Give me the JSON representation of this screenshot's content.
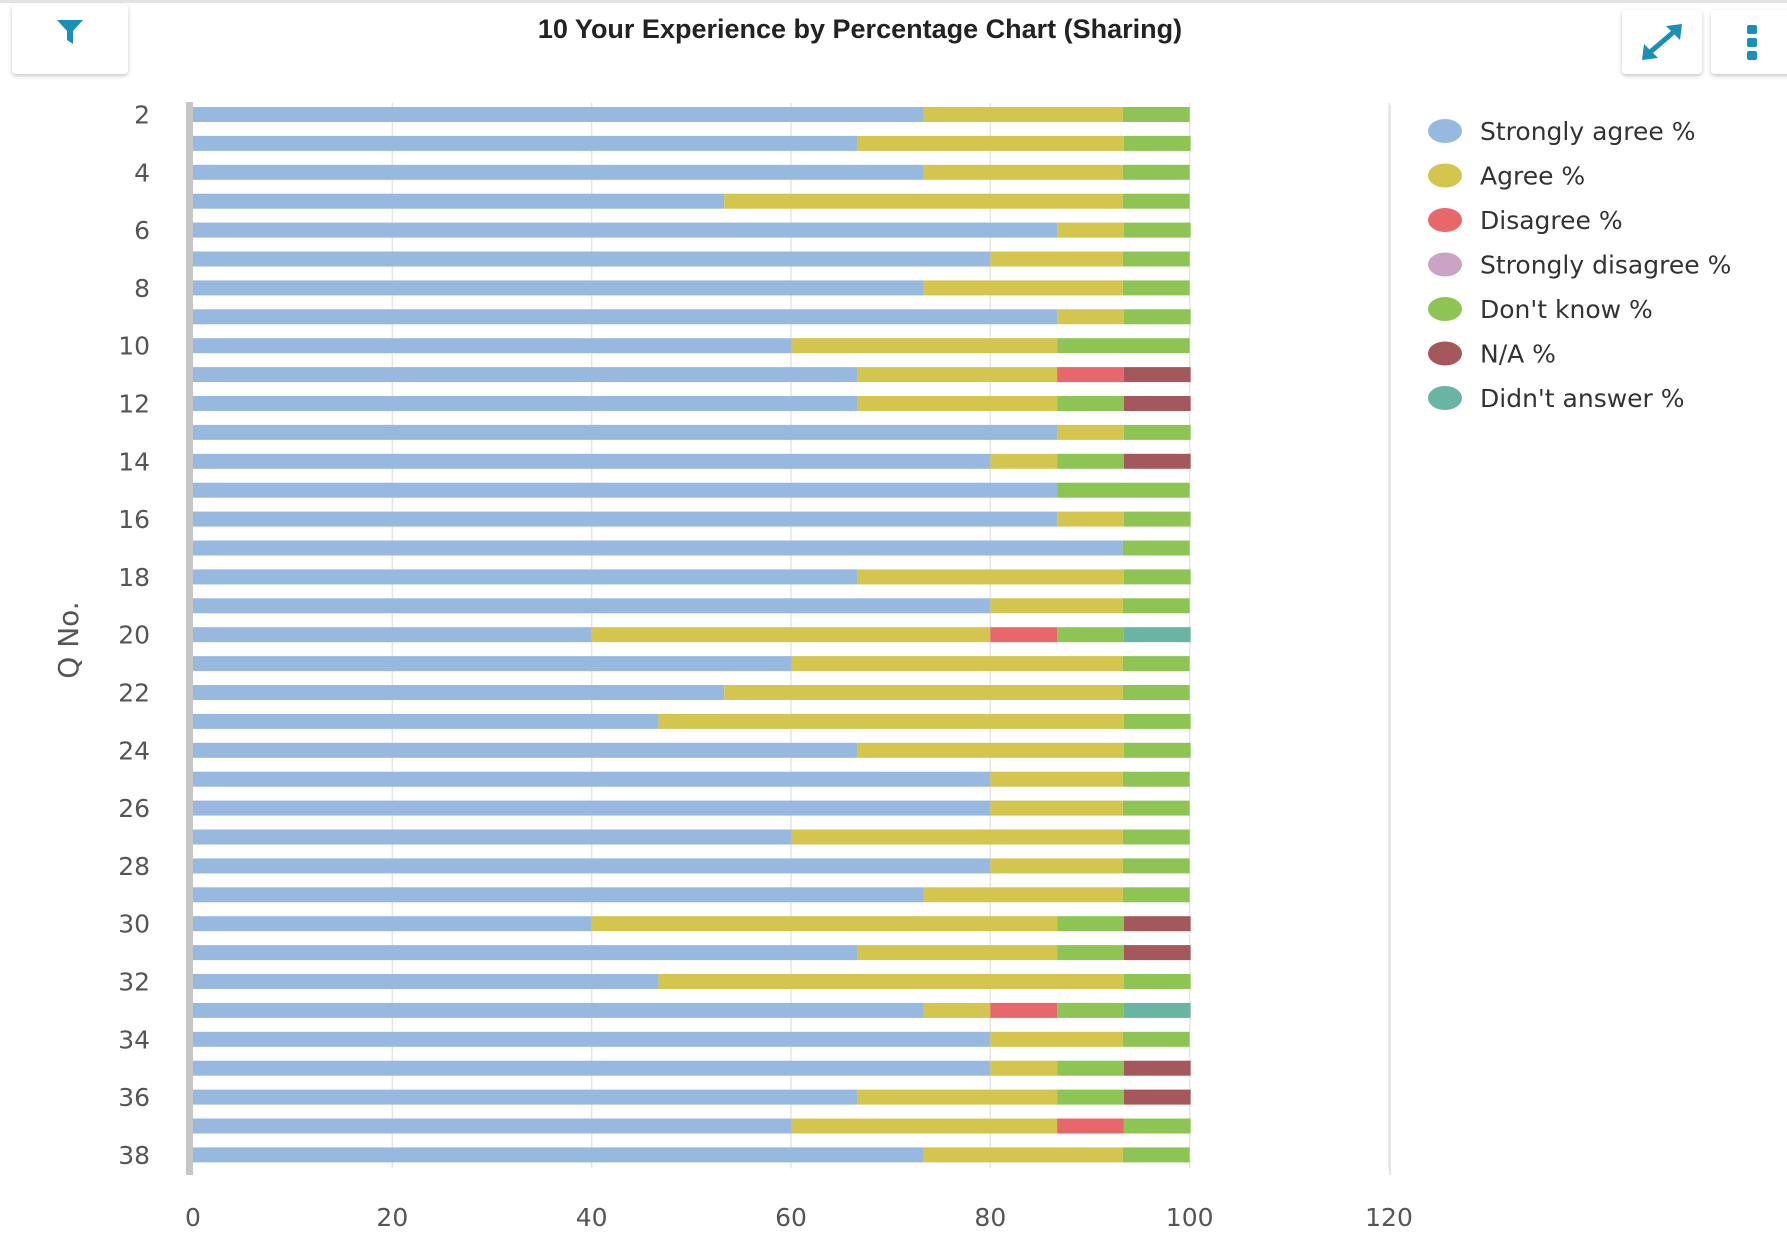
{
  "header": {
    "title": "10 Your Experience by Percentage Chart (Sharing)",
    "filter_icon": "filter-icon",
    "expand_icon": "expand-icon",
    "menu_icon": "more-vertical-icon",
    "accent_color": "#1a8fb8"
  },
  "chart_data": {
    "type": "bar",
    "orientation": "horizontal",
    "stacked": true,
    "title": "10 Your Experience by Percentage Chart (Sharing)",
    "ylabel": "Q No.",
    "xlabel": "",
    "xlim": [
      0,
      120
    ],
    "xticks": [
      0,
      20,
      40,
      60,
      80,
      100,
      120
    ],
    "grid": true,
    "legend_position": "right",
    "categories": [
      "2",
      "3",
      "4",
      "5",
      "6",
      "7",
      "8",
      "9",
      "10",
      "11",
      "12",
      "13",
      "14",
      "15",
      "16",
      "17",
      "18",
      "19",
      "20",
      "21",
      "22",
      "23",
      "24",
      "25",
      "26",
      "27",
      "28",
      "29",
      "30",
      "31",
      "32",
      "33",
      "34",
      "35",
      "36",
      "37",
      "38"
    ],
    "category_labels_shown": [
      "2",
      "4",
      "6",
      "8",
      "10",
      "12",
      "14",
      "16",
      "18",
      "20",
      "22",
      "24",
      "26",
      "28",
      "30",
      "32",
      "34",
      "36",
      "38"
    ],
    "series": [
      {
        "name": "Strongly agree %",
        "color": "#97b9e0",
        "values": [
          73.3,
          66.7,
          73.3,
          53.3,
          86.7,
          80,
          73.3,
          86.7,
          60,
          66.7,
          66.7,
          86.7,
          80,
          86.7,
          86.7,
          93.3,
          66.7,
          80,
          40,
          60,
          53.3,
          46.7,
          66.7,
          80,
          80,
          60,
          80,
          73.3,
          40,
          66.7,
          46.7,
          73.3,
          80,
          80,
          66.7,
          60,
          73.3
        ]
      },
      {
        "name": "Agree %",
        "color": "#d4c54f",
        "values": [
          20,
          26.7,
          20,
          40,
          6.7,
          13.3,
          20,
          6.7,
          26.7,
          20,
          20,
          6.7,
          6.7,
          0,
          6.7,
          0,
          26.7,
          13.3,
          40,
          33.3,
          40,
          46.7,
          26.7,
          13.3,
          13.3,
          33.3,
          13.3,
          20,
          46.7,
          20,
          46.7,
          6.7,
          13.3,
          6.7,
          20,
          26.7,
          20
        ]
      },
      {
        "name": "Disagree %",
        "color": "#e8676b",
        "values": [
          0,
          0,
          0,
          0,
          0,
          0,
          0,
          0,
          0,
          6.7,
          0,
          0,
          0,
          0,
          0,
          0,
          0,
          0,
          6.7,
          0,
          0,
          0,
          0,
          0,
          0,
          0,
          0,
          0,
          0,
          0,
          0,
          6.7,
          0,
          0,
          0,
          6.7,
          0
        ]
      },
      {
        "name": "Strongly disagree %",
        "color": "#cba3c4",
        "values": [
          0,
          0,
          0,
          0,
          0,
          0,
          0,
          0,
          0,
          0,
          0,
          0,
          0,
          0,
          0,
          0,
          0,
          0,
          0,
          0,
          0,
          0,
          0,
          0,
          0,
          0,
          0,
          0,
          0,
          0,
          0,
          0,
          0,
          0,
          0,
          0,
          0
        ]
      },
      {
        "name": "Don't know %",
        "color": "#8dc453",
        "values": [
          6.7,
          6.7,
          6.7,
          6.7,
          6.7,
          6.7,
          6.7,
          6.7,
          13.3,
          0,
          6.7,
          6.7,
          6.7,
          13.3,
          6.7,
          6.7,
          6.7,
          6.7,
          6.7,
          6.7,
          6.7,
          6.7,
          6.7,
          6.7,
          6.7,
          6.7,
          6.7,
          6.7,
          6.7,
          6.7,
          6.7,
          6.7,
          6.7,
          6.7,
          6.7,
          6.7,
          6.7
        ]
      },
      {
        "name": "N/A %",
        "color": "#a4585b",
        "values": [
          0,
          0,
          0,
          0,
          0,
          0,
          0,
          0,
          0,
          6.7,
          6.7,
          0,
          6.7,
          0,
          0,
          0,
          0,
          0,
          0,
          0,
          0,
          0,
          0,
          0,
          0,
          0,
          0,
          0,
          6.7,
          6.7,
          0,
          0,
          0,
          6.7,
          6.7,
          0,
          0
        ]
      },
      {
        "name": "Didn't answer %",
        "color": "#6ab4a3",
        "values": [
          0,
          0,
          0,
          0,
          0,
          0,
          0,
          0,
          0,
          0,
          0,
          0,
          0,
          0,
          0,
          0,
          0,
          0,
          6.7,
          0,
          0,
          0,
          0,
          0,
          0,
          0,
          0,
          0,
          0,
          0,
          0,
          6.7,
          0,
          0,
          0,
          0,
          0
        ]
      }
    ]
  }
}
